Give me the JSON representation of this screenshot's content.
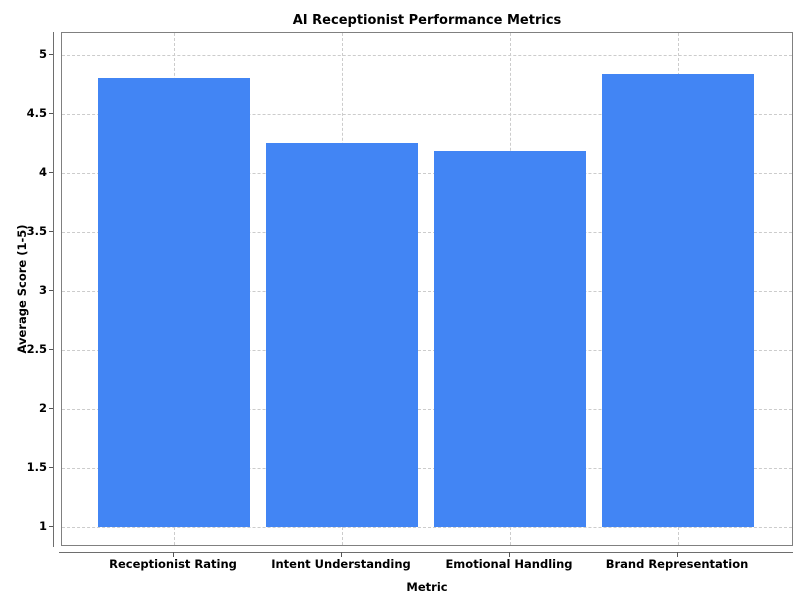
{
  "chart_data": {
    "type": "bar",
    "title": "AI Receptionist Performance Metrics",
    "xlabel": "Metric",
    "ylabel": "Average Score (1-5)",
    "categories": [
      "Receptionist Rating",
      "Intent Understanding",
      "Emotional Handling",
      "Brand Representation"
    ],
    "values": [
      4.81,
      4.26,
      4.19,
      4.84
    ],
    "bar_baseline": 1,
    "yticks": [
      1,
      1.5,
      2,
      2.5,
      3,
      3.5,
      4,
      4.5,
      5
    ],
    "ylim": [
      0.83,
      5.19
    ],
    "grid": true,
    "grid_style": "dashed",
    "legend": false,
    "colors": {
      "bar": "#4285f4",
      "grid": "#cccccc",
      "frame": "#808080",
      "spine": "#6e6e6e",
      "tick": "#555555",
      "text": "#000000",
      "background": "#ffffff"
    }
  }
}
